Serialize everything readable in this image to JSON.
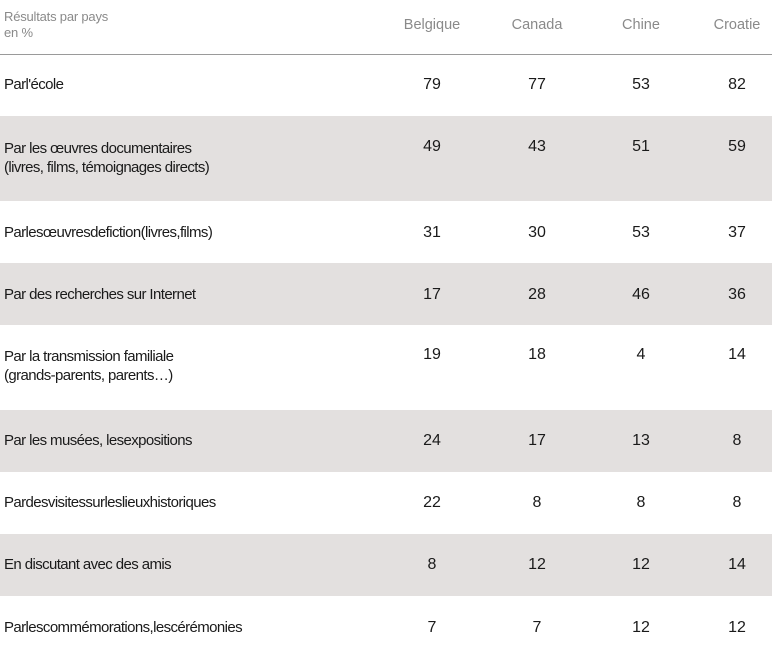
{
  "header": {
    "title_line1": "Résultats par pays",
    "title_line2": "en %",
    "columns": [
      "Belgique",
      "Canada",
      "Chine",
      "Croatie"
    ]
  },
  "rows": [
    {
      "label_line1": "Parl'école",
      "label_line2": "",
      "values": [
        "79",
        "77",
        "53",
        "82"
      ],
      "shaded": false
    },
    {
      "label_line1": "Par les œuvres documentaires",
      "label_line2": "(livres, films,  témoignages  directs)",
      "values": [
        "49",
        "43",
        "51",
        "59"
      ],
      "shaded": true
    },
    {
      "label_line1": "Parlesœuvresdefiction(livres,films)",
      "label_line2": "",
      "values": [
        "31",
        "30",
        "53",
        "37"
      ],
      "shaded": false
    },
    {
      "label_line1": "Par des recherches  sur Internet",
      "label_line2": "",
      "values": [
        "17",
        "28",
        "46",
        "36"
      ],
      "shaded": true
    },
    {
      "label_line1": "Par la transmission familiale",
      "label_line2": "(grands-parents, parents…)",
      "values": [
        "19",
        "18",
        "4",
        "14"
      ],
      "shaded": false
    },
    {
      "label_line1": "Par les musées,  lesexpositions",
      "label_line2": "",
      "values": [
        "24",
        "17",
        "13",
        "8"
      ],
      "shaded": true
    },
    {
      "label_line1": "Pardesvisitessurleslieuxhistoriques",
      "label_line2": "",
      "values": [
        "22",
        "8",
        "8",
        "8"
      ],
      "shaded": false
    },
    {
      "label_line1": "En discutant avec des amis",
      "label_line2": "",
      "values": [
        "8",
        "12",
        "12",
        "14"
      ],
      "shaded": true
    },
    {
      "label_line1": "Parlescommémorations,lescérémonies",
      "label_line2": "",
      "values": [
        "7",
        "7",
        "12",
        "12"
      ],
      "shaded": false
    }
  ]
}
